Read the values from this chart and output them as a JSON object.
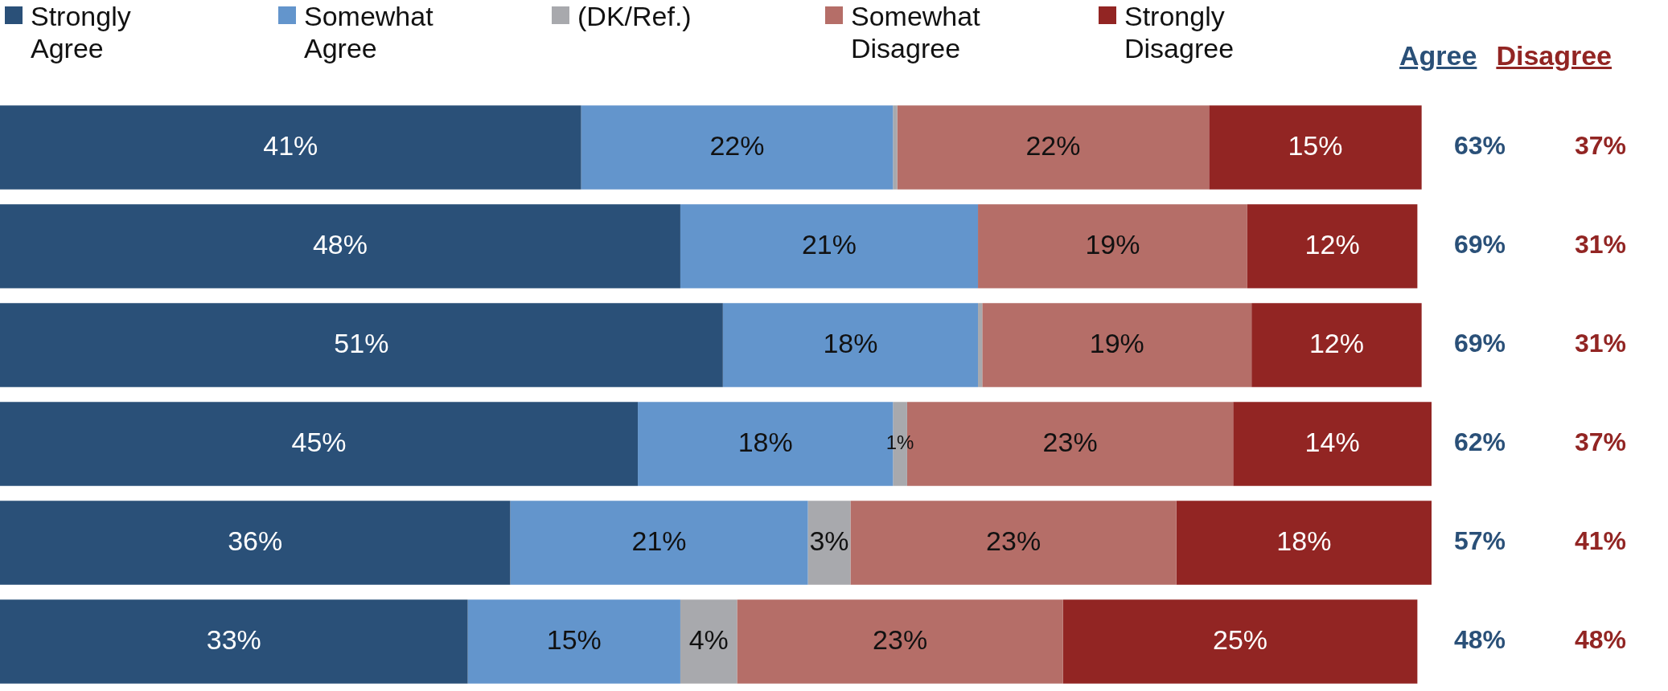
{
  "chart_data": {
    "type": "bar",
    "orientation": "horizontal",
    "stacked": true,
    "legend": "top",
    "xlim": [
      0,
      101
    ],
    "tick_labels": false,
    "categories": [
      null,
      null,
      null,
      null,
      null,
      null
    ],
    "series": [
      {
        "name": "Strongly Agree",
        "color": "#2a5078",
        "values": [
          41,
          48,
          51,
          45,
          36,
          33
        ],
        "value_labels": [
          "41%",
          "48%",
          "51%",
          "45%",
          "36%",
          "33%"
        ]
      },
      {
        "name": "Somewhat Agree",
        "color": "#6395cc",
        "values": [
          22,
          21,
          18,
          18,
          21,
          15
        ],
        "value_labels": [
          "22%",
          "21%",
          "18%",
          "18%",
          "21%",
          "15%"
        ]
      },
      {
        "name": "(DK/Ref.)",
        "color": "#a8a9ad",
        "values": [
          0.3,
          0,
          0.3,
          1,
          3,
          4
        ],
        "value_labels": [
          null,
          null,
          null,
          "1%",
          "3%",
          "4%"
        ]
      },
      {
        "name": "Somewhat Disagree",
        "color": "#b56e68",
        "values": [
          22,
          19,
          19,
          23,
          23,
          23
        ],
        "value_labels": [
          "22%",
          "19%",
          "19%",
          "23%",
          "23%",
          "23%"
        ]
      },
      {
        "name": "Strongly Disagree",
        "color": "#922523",
        "values": [
          15,
          12,
          12,
          14,
          18,
          25
        ],
        "value_labels": [
          "15%",
          "12%",
          "12%",
          "14%",
          "18%",
          "25%"
        ]
      }
    ],
    "annotations": [
      "Agree",
      "Disagree",
      "63%",
      "37%",
      "69%",
      "31%",
      "69%",
      "31%",
      "62%",
      "37%",
      "57%",
      "41%",
      "48%",
      "48%"
    ]
  }
}
